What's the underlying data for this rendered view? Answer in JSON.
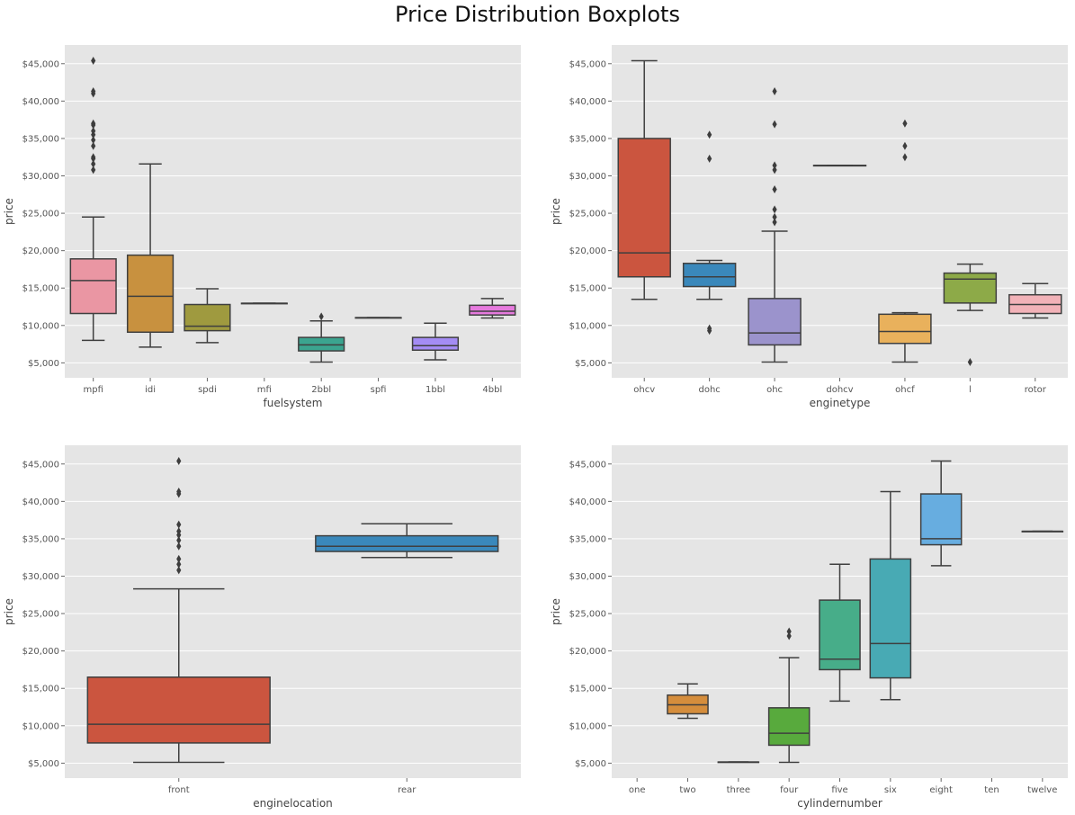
{
  "title": "Price Distribution Boxplots",
  "colors": {
    "panel_bg": "#e5e5e5",
    "grid": "#ffffff",
    "box_line": "#3f3f3f",
    "tick_text": "#555555"
  },
  "y_axis": {
    "label": "price",
    "ylim": [
      3000,
      47500
    ],
    "ticks": [
      5000,
      10000,
      15000,
      20000,
      25000,
      30000,
      35000,
      40000,
      45000
    ],
    "tick_labels": [
      "$5,000",
      "$10,000",
      "$15,000",
      "$20,000",
      "$25,000",
      "$30,000",
      "$35,000",
      "$40,000",
      "$45,000"
    ]
  },
  "chart_data": [
    {
      "type": "box",
      "xlabel": "fuelsystem",
      "ylabel": "price",
      "grid": true,
      "categories": [
        "mpfi",
        "idi",
        "spdi",
        "mfi",
        "2bbl",
        "spfi",
        "1bbl",
        "4bbl"
      ],
      "boxes": [
        {
          "label": "mpfi",
          "color": "#ea96a3",
          "q1": 11600,
          "median": 16000,
          "q3": 18900,
          "whislo": 8000,
          "whishi": 24500,
          "fliers": [
            30800,
            31600,
            32300,
            32500,
            34000,
            34800,
            35500,
            36000,
            36800,
            37000,
            41000,
            41300,
            45400
          ]
        },
        {
          "label": "idi",
          "color": "#c8913f",
          "q1": 9100,
          "median": 13900,
          "q3": 19400,
          "whislo": 7100,
          "whishi": 31600,
          "fliers": []
        },
        {
          "label": "spdi",
          "color": "#9f9a3f",
          "q1": 9300,
          "median": 9900,
          "q3": 12800,
          "whislo": 7700,
          "whishi": 14900,
          "fliers": []
        },
        {
          "label": "mfi",
          "color": "#6aa43f",
          "q1": 12964,
          "median": 12964,
          "q3": 12964,
          "whislo": 12964,
          "whishi": 12964,
          "fliers": []
        },
        {
          "label": "2bbl",
          "color": "#3ba48f",
          "q1": 6600,
          "median": 7400,
          "q3": 8400,
          "whislo": 5100,
          "whishi": 10600,
          "fliers": [
            11200
          ]
        },
        {
          "label": "spfi",
          "color": "#3ea2ab",
          "q1": 11048,
          "median": 11048,
          "q3": 11048,
          "whislo": 11048,
          "whishi": 11048,
          "fliers": []
        },
        {
          "label": "1bbl",
          "color": "#a48cf4",
          "q1": 6700,
          "median": 7300,
          "q3": 8400,
          "whislo": 5400,
          "whishi": 10300,
          "fliers": []
        },
        {
          "label": "4bbl",
          "color": "#e67ade",
          "q1": 11400,
          "median": 11900,
          "q3": 12700,
          "whislo": 11000,
          "whishi": 13600,
          "fliers": []
        }
      ]
    },
    {
      "type": "box",
      "xlabel": "enginetype",
      "ylabel": "price",
      "grid": true,
      "categories": [
        "ohcv",
        "dohc",
        "ohc",
        "dohcv",
        "ohcf",
        "l",
        "rotor"
      ],
      "boxes": [
        {
          "label": "ohcv",
          "color": "#cb553f",
          "q1": 16500,
          "median": 19700,
          "q3": 35000,
          "whislo": 13500,
          "whishi": 45400,
          "fliers": []
        },
        {
          "label": "dohc",
          "color": "#3a88bb",
          "q1": 15200,
          "median": 16500,
          "q3": 18300,
          "whislo": 13500,
          "whishi": 18700,
          "fliers": [
            9300,
            9600,
            32300,
            35500
          ]
        },
        {
          "label": "ohc",
          "color": "#9b93cc",
          "q1": 7400,
          "median": 9000,
          "q3": 13600,
          "whislo": 5100,
          "whishi": 22600,
          "fliers": [
            23800,
            24500,
            25500,
            28200,
            30800,
            31400,
            36900,
            41300
          ]
        },
        {
          "label": "dohcv",
          "color": "#777777",
          "q1": 31400,
          "median": 31400,
          "q3": 31400,
          "whislo": 31400,
          "whishi": 31400,
          "fliers": []
        },
        {
          "label": "ohcf",
          "color": "#e9b15c",
          "q1": 7600,
          "median": 9200,
          "q3": 11500,
          "whislo": 5100,
          "whishi": 11700,
          "fliers": [
            32500,
            34000,
            37000
          ]
        },
        {
          "label": "l",
          "color": "#8daa48",
          "q1": 13000,
          "median": 16200,
          "q3": 17000,
          "whislo": 12000,
          "whishi": 18200,
          "fliers": [
            5100
          ]
        },
        {
          "label": "rotor",
          "color": "#f2b2b8",
          "q1": 11600,
          "median": 12800,
          "q3": 14100,
          "whislo": 11000,
          "whishi": 15600,
          "fliers": []
        }
      ]
    },
    {
      "type": "box",
      "xlabel": "enginelocation",
      "ylabel": "price",
      "grid": true,
      "categories": [
        "front",
        "rear"
      ],
      "boxes": [
        {
          "label": "front",
          "color": "#cb553f",
          "q1": 7700,
          "median": 10200,
          "q3": 16500,
          "whislo": 5100,
          "whishi": 28300,
          "fliers": [
            30800,
            31600,
            32300,
            34000,
            34800,
            35500,
            36000,
            36900,
            41000,
            41300,
            45400
          ]
        },
        {
          "label": "rear",
          "color": "#3a88bb",
          "q1": 33300,
          "median": 34000,
          "q3": 35400,
          "whislo": 32500,
          "whishi": 37000,
          "fliers": []
        }
      ]
    },
    {
      "type": "box",
      "xlabel": "cylindernumber",
      "ylabel": "price",
      "grid": true,
      "categories": [
        "one",
        "two",
        "three",
        "four",
        "five",
        "six",
        "eight",
        "ten",
        "twelve"
      ],
      "boxes": [
        {
          "label": "two",
          "color": "#d58d3c",
          "q1": 11600,
          "median": 12800,
          "q3": 14100,
          "whislo": 11000,
          "whishi": 15600,
          "fliers": []
        },
        {
          "label": "three",
          "color": "#6f8c3e",
          "q1": 5151,
          "median": 5151,
          "q3": 5151,
          "whislo": 5151,
          "whishi": 5151,
          "fliers": []
        },
        {
          "label": "four",
          "color": "#58aa3d",
          "q1": 7400,
          "median": 9000,
          "q3": 12400,
          "whislo": 5100,
          "whishi": 19100,
          "fliers": [
            22000,
            22600
          ]
        },
        {
          "label": "five",
          "color": "#47ad89",
          "q1": 17500,
          "median": 18900,
          "q3": 26800,
          "whislo": 13300,
          "whishi": 31600,
          "fliers": []
        },
        {
          "label": "six",
          "color": "#48aab4",
          "q1": 16400,
          "median": 21000,
          "q3": 32300,
          "whislo": 13500,
          "whishi": 41300,
          "fliers": []
        },
        {
          "label": "eight",
          "color": "#67ade0",
          "q1": 34200,
          "median": 35000,
          "q3": 41000,
          "whislo": 31400,
          "whishi": 45400,
          "fliers": []
        },
        {
          "label": "twelve",
          "color": "#888888",
          "q1": 36000,
          "median": 36000,
          "q3": 36000,
          "whislo": 36000,
          "whishi": 36000,
          "fliers": []
        }
      ]
    }
  ]
}
